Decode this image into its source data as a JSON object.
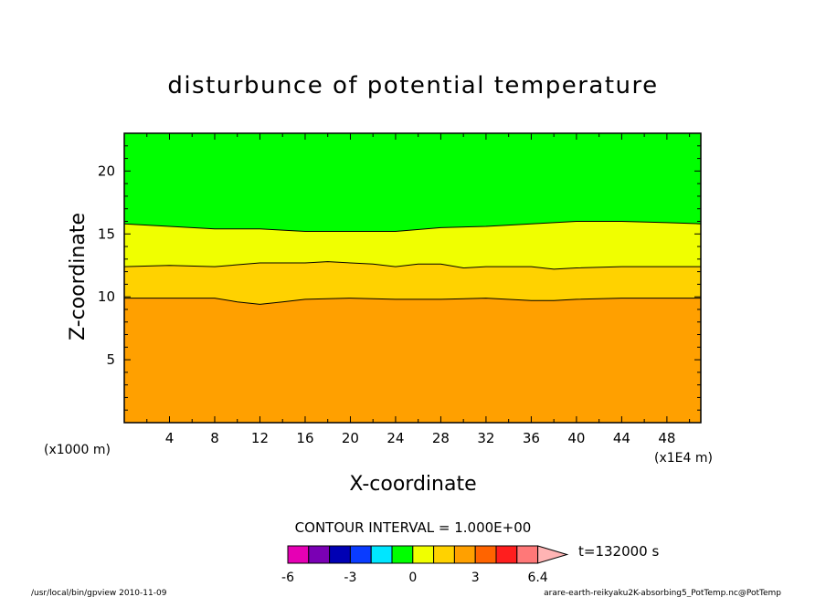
{
  "chart_data": {
    "type": "contour",
    "title": "disturbunce of potential temperature",
    "xlabel": "X-coordinate",
    "ylabel": "Z-coordinate",
    "x_unit_left": "(x1000 m)",
    "x_unit_right": "(x1E4 m)",
    "xlim": [
      0,
      51
    ],
    "ylim": [
      0,
      23
    ],
    "xticks": [
      "4",
      "8",
      "12",
      "16",
      "20",
      "24",
      "28",
      "32",
      "36",
      "40",
      "44",
      "48"
    ],
    "yticks": [
      "5",
      "10",
      "15",
      "20"
    ],
    "contour_interval_label": "CONTOUR INTERVAL = 1.000E+00",
    "time_label": "t=132000 s",
    "colorbar_ticks": [
      "-6",
      "-3",
      "0",
      "3",
      "6.4"
    ],
    "colorbar_colors": [
      "#e600b4",
      "#7a00b4",
      "#0000b4",
      "#0a3cff",
      "#00e6ff",
      "#00ff00",
      "#f0ff00",
      "#ffd200",
      "#ffa000",
      "#ff6400",
      "#ff1e1e",
      "#ff7878",
      "#ffb4b4"
    ],
    "regions": [
      {
        "level": "2 to 3",
        "color": "#ffa000"
      },
      {
        "level": "1 to 2",
        "color": "#ffd200"
      },
      {
        "level": "0 to 1",
        "color": "#f0ff00"
      },
      {
        "level": "-1 to 0",
        "color": "#00ff00"
      }
    ],
    "contours": [
      {
        "level": 2,
        "x": [
          0,
          8,
          10,
          12,
          14,
          16,
          20,
          24,
          28,
          32,
          36,
          38,
          40,
          44,
          48,
          51
        ],
        "z": [
          9.9,
          9.9,
          9.6,
          9.4,
          9.6,
          9.8,
          9.9,
          9.8,
          9.8,
          9.9,
          9.7,
          9.7,
          9.8,
          9.9,
          9.9,
          9.9
        ]
      },
      {
        "level": 1,
        "x": [
          0,
          4,
          8,
          12,
          16,
          18,
          20,
          22,
          24,
          26,
          28,
          30,
          32,
          36,
          38,
          40,
          44,
          48,
          51
        ],
        "z": [
          12.4,
          12.5,
          12.4,
          12.7,
          12.7,
          12.8,
          12.7,
          12.6,
          12.4,
          12.6,
          12.6,
          12.3,
          12.4,
          12.4,
          12.2,
          12.3,
          12.4,
          12.4,
          12.4
        ]
      },
      {
        "level": 0,
        "x": [
          0,
          4,
          8,
          12,
          16,
          20,
          24,
          28,
          32,
          36,
          40,
          44,
          48,
          51
        ],
        "z": [
          15.8,
          15.6,
          15.4,
          15.4,
          15.2,
          15.2,
          15.2,
          15.5,
          15.6,
          15.8,
          16.0,
          16.0,
          15.9,
          15.8
        ]
      }
    ]
  },
  "footer": {
    "left": "/usr/local/bin/gpview  2010-11-09",
    "right": "arare-earth-reikyaku2K-absorbing5_PotTemp.nc@PotTemp"
  }
}
